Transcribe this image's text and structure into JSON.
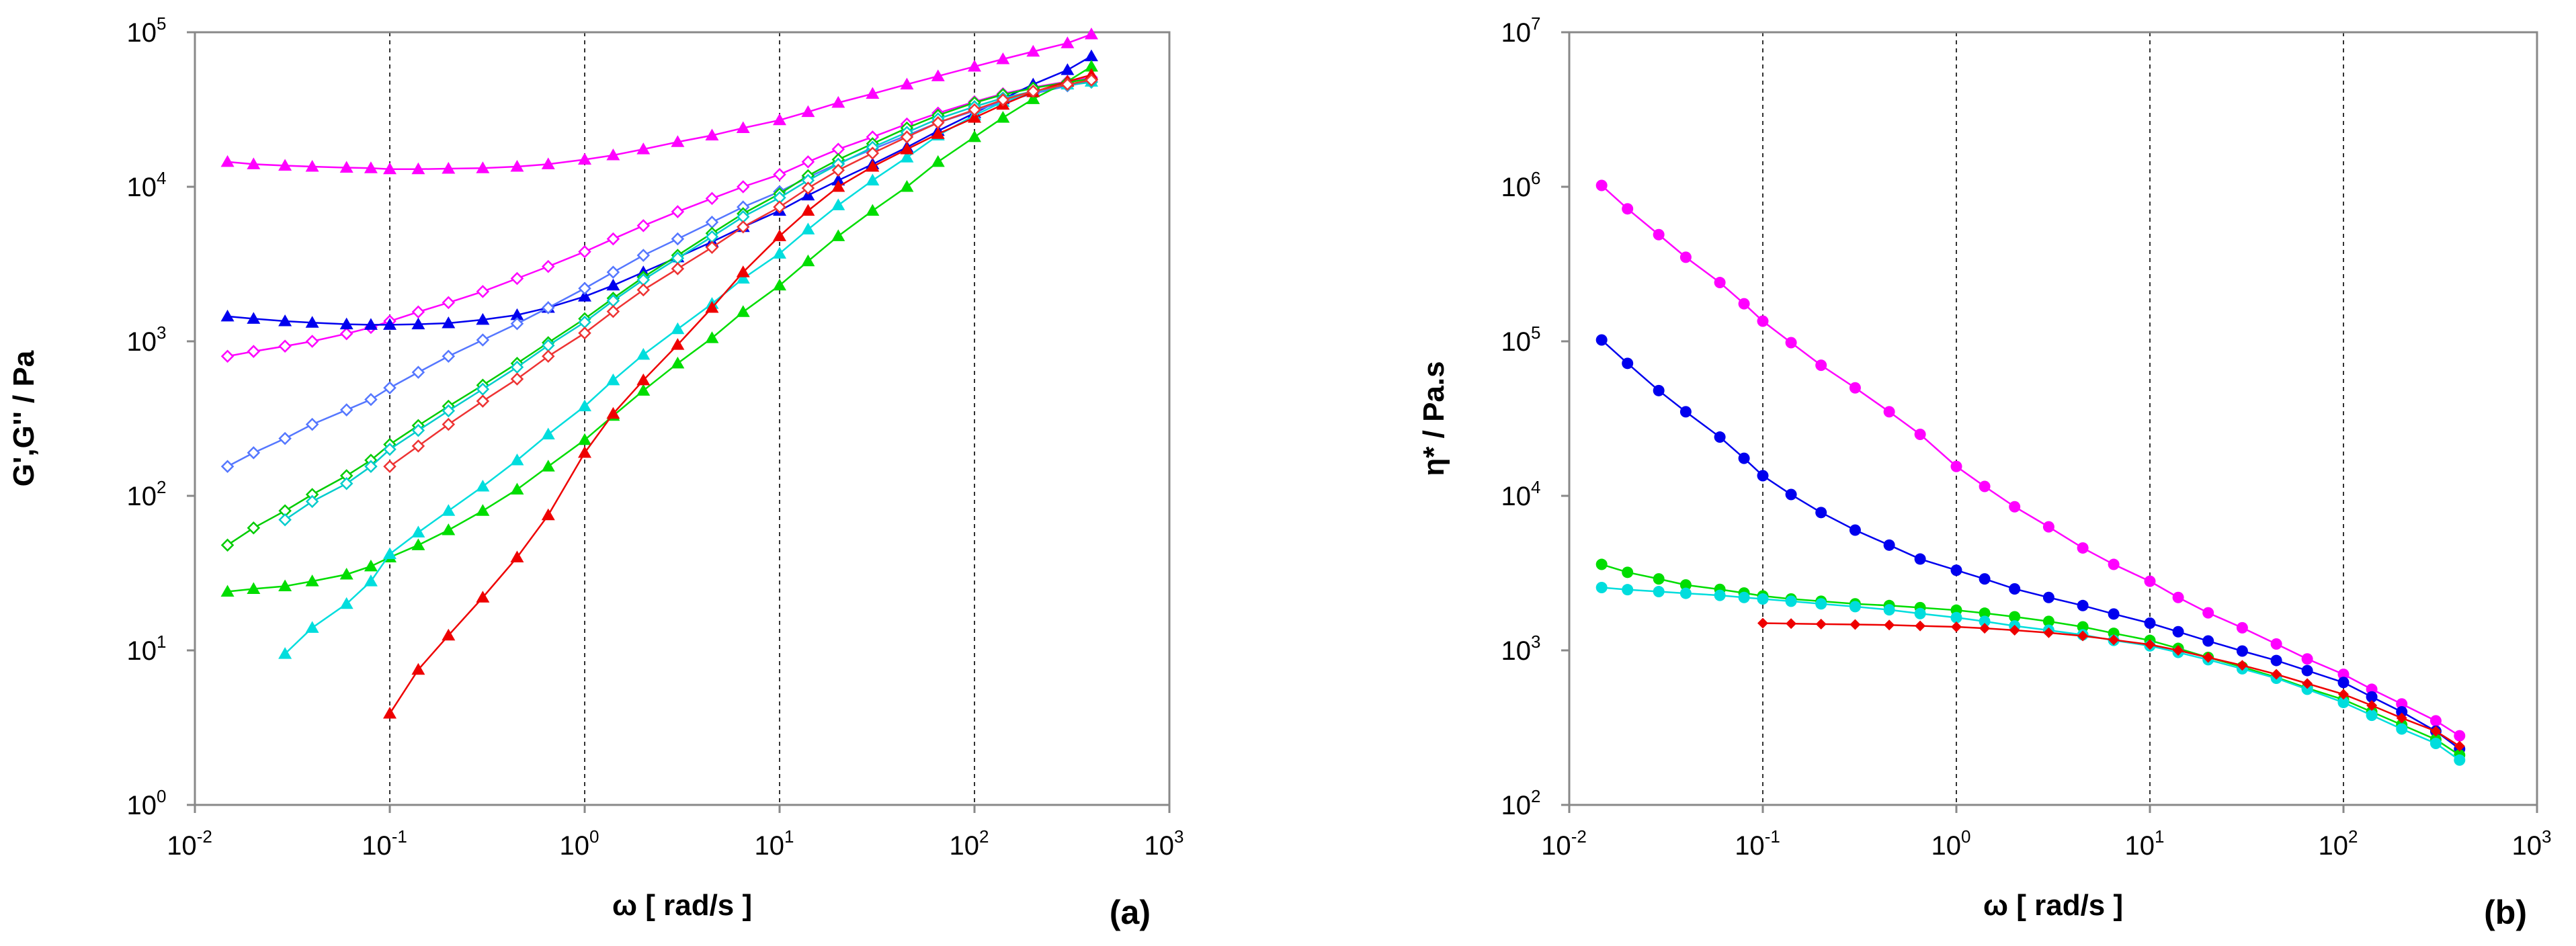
{
  "chart_data": [
    {
      "type": "scatter",
      "panel_label": "(a)",
      "xlabel": "ω  [ rad/s ]",
      "ylabel": "G',G'' / Pa",
      "xscale": "log",
      "yscale": "log",
      "xlim": [
        0.01,
        1000
      ],
      "ylim": [
        1,
        100000
      ],
      "x_ticks": [
        {
          "base": "10",
          "exp": "-2"
        },
        {
          "base": "10",
          "exp": "-1"
        },
        {
          "base": "10",
          "exp": "0"
        },
        {
          "base": "10",
          "exp": "1"
        },
        {
          "base": "10",
          "exp": "2"
        },
        {
          "base": "10",
          "exp": "3"
        }
      ],
      "y_ticks": [
        {
          "base": "10",
          "exp": "0"
        },
        {
          "base": "10",
          "exp": "1"
        },
        {
          "base": "10",
          "exp": "2"
        },
        {
          "base": "10",
          "exp": "3"
        },
        {
          "base": "10",
          "exp": "4"
        },
        {
          "base": "10",
          "exp": "5"
        }
      ],
      "gridlines_x": [
        0.1,
        1,
        10,
        100
      ],
      "series": [
        {
          "name": "magenta G'",
          "color": "#ff00ff",
          "marker": "triangle",
          "x": [
            0.0147,
            0.02,
            0.029,
            0.04,
            0.06,
            0.08,
            0.1,
            0.14,
            0.2,
            0.3,
            0.45,
            0.65,
            1,
            1.4,
            2,
            3,
            4.5,
            6.5,
            10,
            14,
            20,
            30,
            45,
            65,
            100,
            140,
            200,
            300,
            398
          ],
          "y": [
            14500,
            14000,
            13700,
            13500,
            13300,
            13200,
            13000,
            13000,
            13100,
            13200,
            13500,
            14000,
            15000,
            16000,
            17500,
            19500,
            21500,
            24000,
            27000,
            30500,
            35000,
            40000,
            46000,
            52000,
            60000,
            67000,
            75000,
            85000,
            97000
          ]
        },
        {
          "name": "magenta G''",
          "color": "#ff00ff",
          "marker": "diamond-open",
          "x": [
            0.0147,
            0.02,
            0.029,
            0.04,
            0.06,
            0.08,
            0.1,
            0.14,
            0.2,
            0.3,
            0.45,
            0.65,
            1,
            1.4,
            2,
            3,
            4.5,
            6.5,
            10,
            14,
            20,
            30,
            45,
            65,
            100,
            140,
            200,
            300,
            398
          ],
          "y": [
            800,
            860,
            930,
            1000,
            1120,
            1230,
            1350,
            1550,
            1780,
            2100,
            2550,
            3050,
            3800,
            4600,
            5600,
            6900,
            8400,
            10000,
            12000,
            14500,
            17500,
            21000,
            25500,
            30000,
            35500,
            40000,
            44000,
            48000,
            51000
          ]
        },
        {
          "name": "blue G'",
          "color": "#0000ee",
          "marker": "triangle",
          "x": [
            0.0147,
            0.02,
            0.029,
            0.04,
            0.06,
            0.08,
            0.1,
            0.14,
            0.2,
            0.3,
            0.45,
            0.65,
            1,
            1.4,
            2,
            3,
            4.5,
            6.5,
            10,
            14,
            20,
            30,
            45,
            65,
            100,
            140,
            200,
            300,
            398
          ],
          "y": [
            1450,
            1400,
            1350,
            1320,
            1290,
            1280,
            1280,
            1290,
            1310,
            1380,
            1480,
            1650,
            1950,
            2300,
            2800,
            3500,
            4400,
            5500,
            7000,
            8800,
            11000,
            14000,
            18000,
            23000,
            30000,
            37000,
            46000,
            57000,
            70000
          ]
        },
        {
          "name": "blue G''",
          "color": "#5577ff",
          "marker": "diamond-open",
          "x": [
            0.0147,
            0.02,
            0.029,
            0.04,
            0.06,
            0.08,
            0.1,
            0.14,
            0.2,
            0.3,
            0.45,
            0.65,
            1,
            1.4,
            2,
            3,
            4.5,
            6.5,
            10,
            14,
            20,
            30,
            45,
            65,
            100,
            140,
            200,
            300,
            398
          ],
          "y": [
            155,
            190,
            235,
            290,
            360,
            420,
            500,
            630,
            800,
            1020,
            1300,
            1650,
            2200,
            2800,
            3600,
            4600,
            5900,
            7400,
            9300,
            11500,
            14200,
            17500,
            21500,
            26000,
            31000,
            35500,
            40000,
            45000,
            48000
          ]
        },
        {
          "name": "green G'",
          "color": "#00dd00",
          "marker": "triangle",
          "x": [
            0.0147,
            0.02,
            0.029,
            0.04,
            0.06,
            0.08,
            0.1,
            0.14,
            0.2,
            0.3,
            0.45,
            0.65,
            1,
            1.4,
            2,
            3,
            4.5,
            6.5,
            10,
            14,
            20,
            30,
            45,
            65,
            100,
            140,
            200,
            300,
            398
          ],
          "y": [
            24,
            25,
            26,
            28,
            31,
            35,
            40,
            48,
            60,
            80,
            110,
            155,
            230,
            330,
            480,
            720,
            1050,
            1550,
            2300,
            3300,
            4800,
            7000,
            10000,
            14500,
            21000,
            28000,
            37000,
            48000,
            60000
          ]
        },
        {
          "name": "green G''",
          "color": "#00cc00",
          "marker": "diamond-open",
          "x": [
            0.0147,
            0.02,
            0.029,
            0.04,
            0.06,
            0.08,
            0.1,
            0.14,
            0.2,
            0.3,
            0.45,
            0.65,
            1,
            1.4,
            2,
            3,
            4.5,
            6.5,
            10,
            14,
            20,
            30,
            45,
            65,
            100,
            140,
            200,
            300,
            398
          ],
          "y": [
            48,
            62,
            80,
            102,
            135,
            170,
            215,
            285,
            380,
            520,
            720,
            980,
            1400,
            1900,
            2600,
            3600,
            5000,
            6700,
            9000,
            11800,
            15000,
            19000,
            24000,
            29000,
            35000,
            39500,
            43500,
            47500,
            50000
          ]
        },
        {
          "name": "cyan G'",
          "color": "#00dddd",
          "marker": "triangle",
          "x": [
            0.029,
            0.04,
            0.06,
            0.08,
            0.1,
            0.14,
            0.2,
            0.3,
            0.45,
            0.65,
            1,
            1.4,
            2,
            3,
            4.5,
            6.5,
            10,
            14,
            20,
            30,
            45,
            65,
            100,
            140,
            200,
            300,
            398
          ],
          "y": [
            9.5,
            14,
            20,
            28,
            42,
            58,
            80,
            115,
            170,
            250,
            380,
            560,
            820,
            1200,
            1750,
            2550,
            3700,
            5300,
            7600,
            11000,
            15500,
            21500,
            29000,
            35500,
            41000,
            46000,
            48000
          ]
        },
        {
          "name": "cyan G''",
          "color": "#00cccc",
          "marker": "diamond-open",
          "x": [
            0.029,
            0.04,
            0.06,
            0.08,
            0.1,
            0.14,
            0.2,
            0.3,
            0.45,
            0.65,
            1,
            1.4,
            2,
            3,
            4.5,
            6.5,
            10,
            14,
            20,
            30,
            45,
            65,
            100,
            140,
            200,
            300,
            398
          ],
          "y": [
            70,
            92,
            120,
            155,
            200,
            265,
            355,
            490,
            680,
            940,
            1330,
            1830,
            2500,
            3450,
            4750,
            6400,
            8500,
            11000,
            14000,
            18000,
            22500,
            27500,
            33000,
            37500,
            41500,
            45500,
            47500
          ]
        },
        {
          "name": "red G'",
          "color": "#ee0000",
          "marker": "triangle",
          "x": [
            0.1,
            0.14,
            0.2,
            0.3,
            0.45,
            0.65,
            1,
            1.4,
            2,
            3,
            4.5,
            6.5,
            10,
            14,
            20,
            30,
            45,
            65,
            100,
            140,
            200,
            300,
            398
          ],
          "y": [
            3.9,
            7.5,
            12.5,
            22,
            40,
            75,
            190,
            340,
            560,
            950,
            1650,
            2800,
            4800,
            7000,
            10000,
            13500,
            17500,
            22000,
            28000,
            34000,
            41000,
            48000,
            53000
          ]
        },
        {
          "name": "red G''",
          "color": "#ee3333",
          "marker": "diamond-open",
          "x": [
            0.1,
            0.14,
            0.2,
            0.3,
            0.45,
            0.65,
            1,
            1.4,
            2,
            3,
            4.5,
            6.5,
            10,
            14,
            20,
            30,
            45,
            65,
            100,
            140,
            200,
            300,
            398
          ],
          "y": [
            155,
            210,
            290,
            410,
            570,
            800,
            1130,
            1560,
            2150,
            2950,
            4050,
            5500,
            7400,
            9800,
            12800,
            16500,
            21000,
            26000,
            31500,
            36500,
            41500,
            46000,
            49000
          ]
        }
      ]
    },
    {
      "type": "scatter",
      "panel_label": "(b)",
      "xlabel": "ω  [ rad/s ]",
      "ylabel": "η*  / Pa.s",
      "xscale": "log",
      "yscale": "log",
      "xlim": [
        0.01,
        1000
      ],
      "ylim": [
        100,
        10000000
      ],
      "x_ticks": [
        {
          "base": "10",
          "exp": "-2"
        },
        {
          "base": "10",
          "exp": "-1"
        },
        {
          "base": "10",
          "exp": "0"
        },
        {
          "base": "10",
          "exp": "1"
        },
        {
          "base": "10",
          "exp": "2"
        },
        {
          "base": "10",
          "exp": "3"
        }
      ],
      "y_ticks": [
        {
          "base": "10",
          "exp": "2"
        },
        {
          "base": "10",
          "exp": "3"
        },
        {
          "base": "10",
          "exp": "4"
        },
        {
          "base": "10",
          "exp": "5"
        },
        {
          "base": "10",
          "exp": "6"
        },
        {
          "base": "10",
          "exp": "7"
        }
      ],
      "gridlines_x": [
        0.1,
        1,
        10,
        100
      ],
      "series": [
        {
          "name": "magenta",
          "color": "#ff00ff",
          "marker": "circle",
          "x": [
            0.0147,
            0.02,
            0.029,
            0.04,
            0.06,
            0.08,
            0.1,
            0.14,
            0.2,
            0.3,
            0.45,
            0.65,
            1,
            1.4,
            2,
            3,
            4.5,
            6.5,
            10,
            14,
            20,
            30,
            45,
            65,
            100,
            140,
            200,
            300,
            398
          ],
          "y": [
            1020000,
            720000,
            490000,
            350000,
            240000,
            175000,
            135000,
            98000,
            70000,
            50000,
            35000,
            25000,
            15500,
            11500,
            8500,
            6300,
            4600,
            3600,
            2800,
            2200,
            1750,
            1400,
            1100,
            880,
            700,
            560,
            450,
            350,
            280
          ]
        },
        {
          "name": "blue",
          "color": "#0000ee",
          "marker": "circle",
          "x": [
            0.0147,
            0.02,
            0.029,
            0.04,
            0.06,
            0.08,
            0.1,
            0.14,
            0.2,
            0.3,
            0.45,
            0.65,
            1,
            1.4,
            2,
            3,
            4.5,
            6.5,
            10,
            14,
            20,
            30,
            45,
            65,
            100,
            140,
            200,
            300,
            398
          ],
          "y": [
            102000,
            72000,
            48000,
            35000,
            24000,
            17500,
            13500,
            10200,
            7800,
            6000,
            4800,
            3900,
            3300,
            2900,
            2500,
            2200,
            1950,
            1720,
            1500,
            1320,
            1150,
            990,
            860,
            740,
            620,
            500,
            400,
            300,
            230
          ]
        },
        {
          "name": "green",
          "color": "#00dd00",
          "marker": "circle",
          "x": [
            0.0147,
            0.02,
            0.029,
            0.04,
            0.06,
            0.08,
            0.1,
            0.14,
            0.2,
            0.3,
            0.45,
            0.65,
            1,
            1.4,
            2,
            3,
            4.5,
            6.5,
            10,
            14,
            20,
            30,
            45,
            65,
            100,
            140,
            200,
            300,
            398
          ],
          "y": [
            3600,
            3200,
            2900,
            2650,
            2480,
            2350,
            2250,
            2150,
            2080,
            2000,
            1950,
            1890,
            1820,
            1740,
            1650,
            1540,
            1420,
            1290,
            1160,
            1030,
            900,
            780,
            670,
            570,
            480,
            400,
            330,
            265,
            210
          ]
        },
        {
          "name": "cyan",
          "color": "#00dddd",
          "marker": "circle",
          "x": [
            0.0147,
            0.02,
            0.029,
            0.04,
            0.06,
            0.08,
            0.1,
            0.14,
            0.2,
            0.3,
            0.45,
            0.65,
            1,
            1.4,
            2,
            3,
            4.5,
            6.5,
            10,
            14,
            20,
            30,
            45,
            65,
            100,
            140,
            200,
            300,
            398
          ],
          "y": [
            2550,
            2470,
            2400,
            2340,
            2270,
            2200,
            2150,
            2080,
            2000,
            1920,
            1830,
            1730,
            1630,
            1540,
            1440,
            1350,
            1260,
            1160,
            1070,
            970,
            870,
            760,
            660,
            560,
            460,
            380,
            310,
            250,
            195
          ]
        },
        {
          "name": "red",
          "color": "#ee0000",
          "marker": "diamond",
          "x": [
            0.1,
            0.14,
            0.2,
            0.3,
            0.45,
            0.65,
            1,
            1.4,
            2,
            3,
            4.5,
            6.5,
            10,
            14,
            20,
            30,
            45,
            65,
            100,
            140,
            200,
            300,
            398
          ],
          "y": [
            1500,
            1490,
            1480,
            1470,
            1460,
            1440,
            1420,
            1390,
            1350,
            1300,
            1240,
            1170,
            1090,
            1000,
            900,
            800,
            700,
            610,
            520,
            440,
            365,
            300,
            240
          ]
        }
      ]
    }
  ]
}
